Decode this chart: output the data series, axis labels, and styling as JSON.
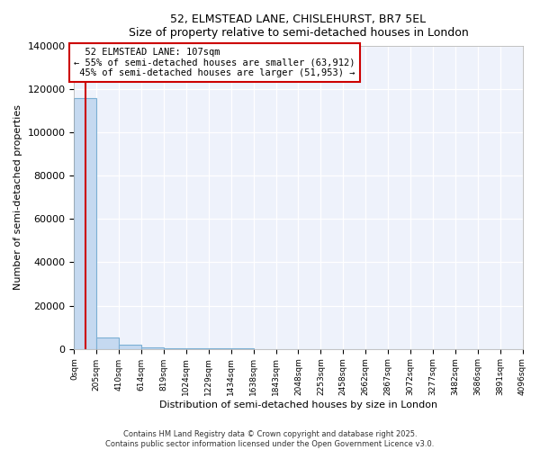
{
  "title1": "52, ELMSTEAD LANE, CHISLEHURST, BR7 5EL",
  "title2": "Size of property relative to semi-detached houses in London",
  "xlabel": "Distribution of semi-detached houses by size in London",
  "ylabel": "Number of semi-detached properties",
  "bar_edges": [
    0,
    205,
    410,
    614,
    819,
    1024,
    1229,
    1434,
    1638,
    1843,
    2048,
    2253,
    2458,
    2662,
    2867,
    3072,
    3277,
    3482,
    3686,
    3891,
    4096
  ],
  "bar_values": [
    115865,
    5200,
    1800,
    700,
    350,
    180,
    100,
    60,
    40,
    25,
    18,
    14,
    10,
    8,
    6,
    5,
    4,
    3,
    3,
    2
  ],
  "bar_color": "#c5d9f0",
  "bar_edge_color": "#7bafd4",
  "property_size": 107,
  "property_name": "52 ELMSTEAD LANE: 107sqm",
  "pct_smaller": 55,
  "n_smaller": 63912,
  "pct_larger": 45,
  "n_larger": 51953,
  "line_color": "#cc0000",
  "annotation_box_color": "#cc0000",
  "footer": "Contains HM Land Registry data © Crown copyright and database right 2025.\nContains public sector information licensed under the Open Government Licence v3.0.",
  "ylim_max": 140000,
  "bg_color": "#eef2fb",
  "grid_color": "#ffffff",
  "spine_color": "#aaaaaa"
}
